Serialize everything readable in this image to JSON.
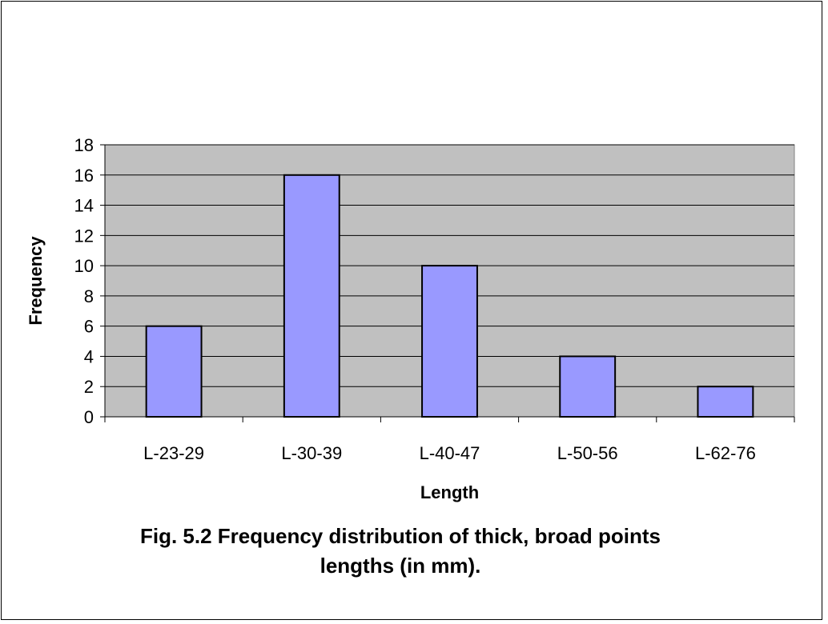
{
  "colors": {
    "bar_fill": "#9999ff",
    "plot_background": "#c0c0c0",
    "gridline": "#000000"
  },
  "caption": {
    "line1": "Fig. 5.2 Frequency distribution of thick, broad points",
    "line2": "lengths (in mm)."
  },
  "chart_data": {
    "type": "bar",
    "categories": [
      "L-23-29",
      "L-30-39",
      "L-40-47",
      "L-50-56",
      "L-62-76"
    ],
    "values": [
      6,
      16,
      10,
      4,
      2
    ],
    "title": "",
    "xlabel": "Length",
    "ylabel": "Frequency",
    "ylim": [
      0,
      18
    ],
    "yticks": [
      0,
      2,
      4,
      6,
      8,
      10,
      12,
      14,
      16,
      18
    ],
    "grid": true,
    "legend": "none"
  }
}
